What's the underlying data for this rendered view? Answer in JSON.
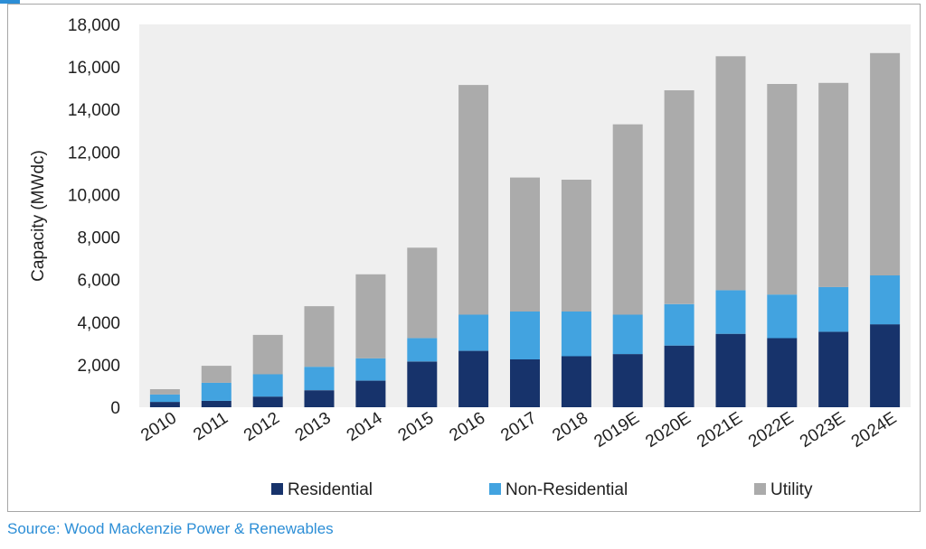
{
  "source_note": "Source: Wood Mackenzie Power & Renewables",
  "colors": {
    "residential": "#17336b",
    "non_residential": "#42a3e0",
    "utility": "#ababab",
    "plot_bg": "#efefef",
    "source": "#2c8ed6"
  },
  "chart_data": {
    "type": "bar",
    "stacked": true,
    "ylabel": "Capacity (MWdc)",
    "ylim": [
      0,
      18000
    ],
    "yticks": [
      "0",
      "2,000",
      "4,000",
      "6,000",
      "8,000",
      "10,000",
      "12,000",
      "14,000",
      "16,000",
      "18,000"
    ],
    "categories": [
      "2010",
      "2011",
      "2012",
      "2013",
      "2014",
      "2015",
      "2016",
      "2017",
      "2018",
      "2019E",
      "2020E",
      "2021E",
      "2022E",
      "2023E",
      "2024E"
    ],
    "series": [
      {
        "name": "Residential",
        "values": [
          250,
          300,
          500,
          800,
          1250,
          2150,
          2650,
          2250,
          2400,
          2500,
          2900,
          3450,
          3250,
          3550,
          3900
        ]
      },
      {
        "name": "Non-Residential",
        "values": [
          350,
          850,
          1050,
          1100,
          1050,
          1100,
          1700,
          2250,
          2100,
          1850,
          1950,
          2050,
          2050,
          2100,
          2300
        ]
      },
      {
        "name": "Utility",
        "values": [
          250,
          800,
          1850,
          2850,
          3950,
          4250,
          10800,
          6300,
          6200,
          8950,
          10050,
          11000,
          9900,
          9600,
          10450
        ]
      }
    ],
    "legend_position": "bottom",
    "grid": false
  }
}
